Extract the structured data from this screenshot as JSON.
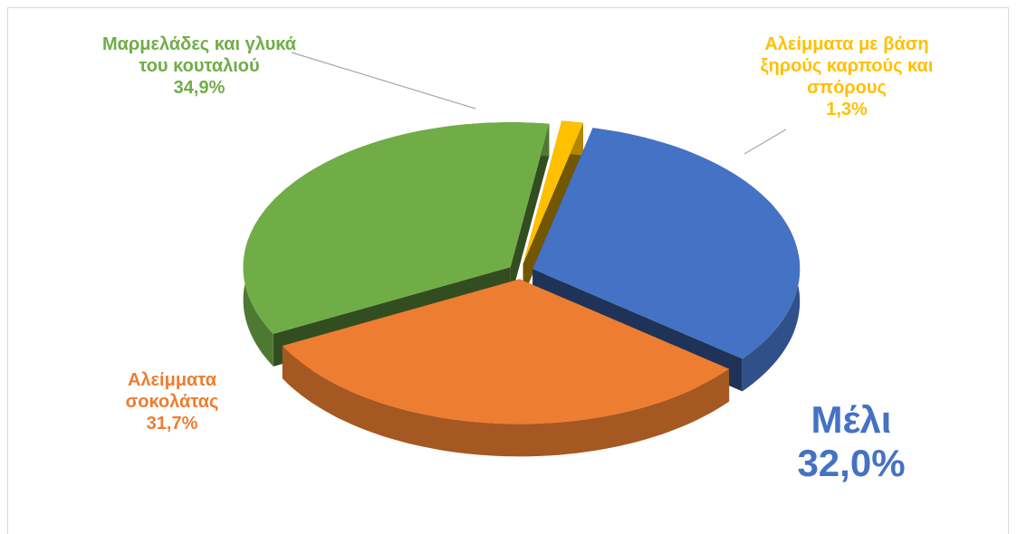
{
  "chart_data": {
    "type": "pie",
    "categories": [
      "Μέλι",
      "Αλείμματα σοκολάτας",
      "Μαρμελάδες και γλυκά του κουταλιού",
      "Αλείμματα με βάση ξηρούς καρπούς και σπόρους"
    ],
    "values": [
      32.0,
      31.7,
      34.9,
      1.3
    ],
    "value_labels": [
      "32,0%",
      "31,7%",
      "34,9%",
      "1,3%"
    ],
    "colors": [
      "#4472c4",
      "#ed7d31",
      "#70ad47",
      "#ffc000"
    ]
  }
}
